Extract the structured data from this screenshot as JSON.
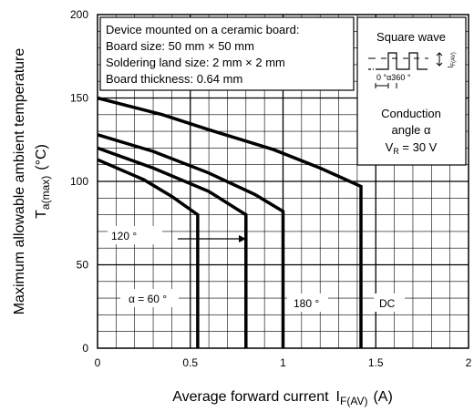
{
  "chart_data": {
    "type": "line",
    "xlabel": "Average forward current",
    "xlabel_sub": "F(AV)",
    "xlabel_unit": "(A)",
    "ylabel": "Maximum allowable ambient temperature",
    "ylabel_sym": "T",
    "ylabel_sub": "a(max)",
    "ylabel_unit": "(°C)",
    "xlim": [
      0,
      2
    ],
    "ylim": [
      0,
      200
    ],
    "x_ticks": [
      "0",
      "0.5",
      "1",
      "1.5",
      "2"
    ],
    "y_ticks": [
      "0",
      "50",
      "100",
      "150",
      "200"
    ],
    "grid": true,
    "series": [
      {
        "name": "α = 60 °",
        "points": [
          [
            0,
            113
          ],
          [
            0.25,
            101
          ],
          [
            0.4,
            91
          ],
          [
            0.54,
            80
          ],
          [
            0.54,
            0
          ]
        ]
      },
      {
        "name": "120 °",
        "points": [
          [
            0,
            120
          ],
          [
            0.3,
            108
          ],
          [
            0.6,
            94
          ],
          [
            0.8,
            80
          ],
          [
            0.8,
            0
          ]
        ]
      },
      {
        "name": "180 °",
        "points": [
          [
            0,
            128
          ],
          [
            0.3,
            118
          ],
          [
            0.6,
            105
          ],
          [
            0.85,
            92
          ],
          [
            1.0,
            82
          ],
          [
            1.0,
            0
          ]
        ]
      },
      {
        "name": "DC",
        "points": [
          [
            0,
            150
          ],
          [
            0.35,
            140
          ],
          [
            0.6,
            131
          ],
          [
            0.95,
            119
          ],
          [
            1.2,
            108
          ],
          [
            1.42,
            97
          ],
          [
            1.42,
            0
          ]
        ]
      }
    ],
    "annotations": {
      "conditions": [
        "Device mounted on a ceramic board:",
        "Board size: 50 mm × 50 mm",
        "Soldering land size: 2 mm × 2 mm",
        "Board thickness: 0.64 mm"
      ],
      "waveform_title": "Square wave",
      "waveform_angles": "0 °α360 °",
      "waveform_current_sym": "I",
      "waveform_current_sub": "F(AV)",
      "conduction_line1": "Conduction",
      "conduction_line2": "angle α",
      "vr_sym": "V",
      "vr_sub": "R",
      "vr_value": " = 30 V"
    }
  }
}
